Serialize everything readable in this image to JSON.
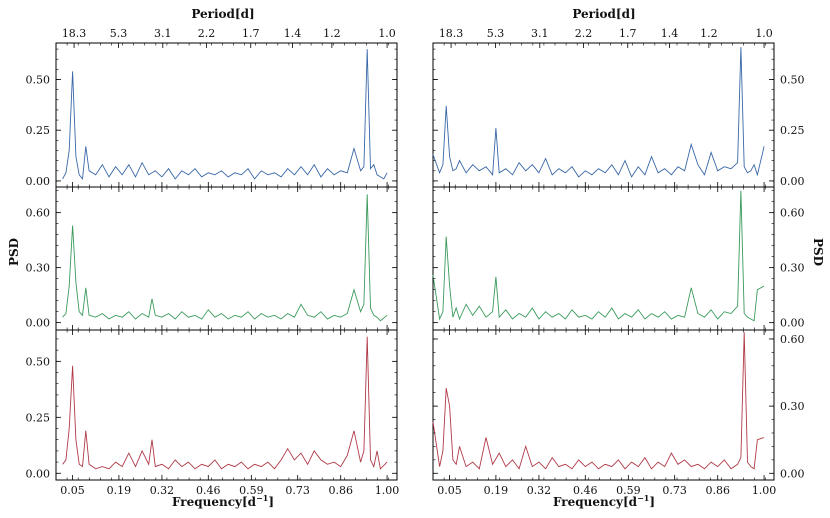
{
  "chart_data": {
    "type": "line",
    "layout": "3 rows x 2 columns",
    "shared_axes": {
      "xlabel_bottom": "Frequency[d",
      "xlabel_bottom_sup": "−1",
      "xlabel_bottom_close": "]",
      "xlabel_top": "Period[d]",
      "ylabel": "PSD",
      "xlim": [
        0.0,
        1.03
      ],
      "x_ticks": [
        0.05,
        0.19,
        0.32,
        0.46,
        0.59,
        0.73,
        0.86,
        1.0
      ],
      "x_tick_labels": [
        "0.05",
        "0.19",
        "0.32",
        "0.46",
        "0.59",
        "0.73",
        "0.86",
        "1.00"
      ],
      "top_ticks_freq": [
        0.0546,
        0.1887,
        0.3226,
        0.4545,
        0.5882,
        0.7143,
        0.8333,
        1.0
      ],
      "top_tick_labels": [
        "18.3",
        "5.3",
        "3.1",
        "2.2",
        "1.7",
        "1.4",
        "1.2",
        "1.0"
      ],
      "y_ticks_left": [
        {
          "values": [
            0.0,
            0.25,
            0.5
          ],
          "labels": [
            "0.00",
            "0.25",
            "0.50"
          ]
        },
        {
          "values": [
            0.0,
            0.3,
            0.6
          ],
          "labels": [
            "0.00",
            "0.30",
            "0.60"
          ]
        },
        {
          "values": [
            0.0,
            0.25,
            0.5
          ],
          "labels": [
            "0.00",
            "0.25",
            "0.50"
          ]
        }
      ],
      "y_ticks_right": [
        {
          "values": [
            0.0,
            0.25,
            0.5
          ],
          "labels": [
            "0.00",
            "0.25",
            "0.50"
          ]
        },
        {
          "values": [
            0.0,
            0.3,
            0.6
          ],
          "labels": [
            "0.00",
            "0.30",
            "0.60"
          ]
        },
        {
          "values": [
            0.0,
            0.3,
            0.6
          ],
          "labels": [
            "0.00",
            "0.30",
            "0.60"
          ]
        }
      ],
      "ylim_rows": [
        [
          -0.03,
          0.68
        ],
        [
          -0.04,
          0.74
        ],
        [
          -0.03,
          0.64
        ]
      ],
      "grid": false
    },
    "colors": {
      "row1": "#3a68a8",
      "row2": "#3a9a5c",
      "row3": "#b03a48"
    },
    "panels": [
      {
        "row": 0,
        "col": 0,
        "color_key": "row1",
        "x": [
          0.02,
          0.03,
          0.04,
          0.05,
          0.06,
          0.07,
          0.08,
          0.09,
          0.1,
          0.12,
          0.14,
          0.16,
          0.18,
          0.2,
          0.22,
          0.24,
          0.26,
          0.28,
          0.3,
          0.32,
          0.34,
          0.36,
          0.38,
          0.4,
          0.42,
          0.44,
          0.46,
          0.48,
          0.5,
          0.52,
          0.54,
          0.56,
          0.58,
          0.6,
          0.62,
          0.64,
          0.66,
          0.68,
          0.7,
          0.72,
          0.74,
          0.76,
          0.78,
          0.8,
          0.82,
          0.84,
          0.86,
          0.88,
          0.9,
          0.92,
          0.93,
          0.94,
          0.95,
          0.96,
          0.97,
          0.98,
          0.99,
          1.0
        ],
        "y": [
          0.01,
          0.04,
          0.15,
          0.54,
          0.12,
          0.03,
          0.01,
          0.17,
          0.05,
          0.03,
          0.08,
          0.02,
          0.07,
          0.03,
          0.08,
          0.02,
          0.09,
          0.03,
          0.05,
          0.02,
          0.06,
          0.01,
          0.05,
          0.03,
          0.06,
          0.02,
          0.04,
          0.03,
          0.05,
          0.02,
          0.04,
          0.03,
          0.06,
          0.01,
          0.05,
          0.03,
          0.04,
          0.02,
          0.06,
          0.03,
          0.07,
          0.03,
          0.08,
          0.02,
          0.06,
          0.03,
          0.05,
          0.04,
          0.16,
          0.05,
          0.07,
          0.65,
          0.06,
          0.08,
          0.03,
          0.02,
          0.01,
          0.04
        ]
      },
      {
        "row": 0,
        "col": 1,
        "color_key": "row1",
        "x": [
          0.0,
          0.02,
          0.03,
          0.04,
          0.05,
          0.06,
          0.07,
          0.08,
          0.1,
          0.12,
          0.14,
          0.16,
          0.18,
          0.19,
          0.2,
          0.22,
          0.24,
          0.26,
          0.28,
          0.3,
          0.32,
          0.34,
          0.36,
          0.38,
          0.4,
          0.42,
          0.44,
          0.46,
          0.48,
          0.5,
          0.52,
          0.54,
          0.56,
          0.58,
          0.6,
          0.62,
          0.64,
          0.66,
          0.68,
          0.7,
          0.72,
          0.74,
          0.76,
          0.78,
          0.8,
          0.82,
          0.84,
          0.86,
          0.88,
          0.9,
          0.92,
          0.93,
          0.94,
          0.95,
          0.96,
          0.97,
          0.98,
          1.0
        ],
        "y": [
          0.13,
          0.04,
          0.08,
          0.37,
          0.12,
          0.05,
          0.06,
          0.1,
          0.04,
          0.08,
          0.05,
          0.07,
          0.03,
          0.26,
          0.04,
          0.06,
          0.03,
          0.09,
          0.05,
          0.08,
          0.04,
          0.11,
          0.03,
          0.06,
          0.04,
          0.07,
          0.02,
          0.05,
          0.03,
          0.06,
          0.04,
          0.08,
          0.03,
          0.1,
          0.02,
          0.07,
          0.03,
          0.12,
          0.04,
          0.06,
          0.03,
          0.07,
          0.05,
          0.18,
          0.08,
          0.03,
          0.14,
          0.05,
          0.07,
          0.06,
          0.09,
          0.66,
          0.07,
          0.04,
          0.05,
          0.08,
          0.03,
          0.17
        ]
      },
      {
        "row": 1,
        "col": 0,
        "color_key": "row2",
        "x": [
          0.02,
          0.03,
          0.04,
          0.05,
          0.06,
          0.07,
          0.08,
          0.09,
          0.1,
          0.12,
          0.14,
          0.16,
          0.18,
          0.2,
          0.22,
          0.24,
          0.26,
          0.28,
          0.29,
          0.3,
          0.32,
          0.34,
          0.36,
          0.38,
          0.4,
          0.42,
          0.44,
          0.46,
          0.48,
          0.5,
          0.52,
          0.54,
          0.56,
          0.58,
          0.6,
          0.62,
          0.64,
          0.66,
          0.68,
          0.7,
          0.72,
          0.74,
          0.76,
          0.78,
          0.8,
          0.82,
          0.84,
          0.86,
          0.88,
          0.9,
          0.92,
          0.93,
          0.94,
          0.95,
          0.96,
          0.97,
          0.98,
          1.0
        ],
        "y": [
          0.03,
          0.05,
          0.2,
          0.53,
          0.22,
          0.06,
          0.04,
          0.19,
          0.04,
          0.03,
          0.05,
          0.02,
          0.04,
          0.03,
          0.06,
          0.02,
          0.05,
          0.03,
          0.13,
          0.04,
          0.03,
          0.05,
          0.02,
          0.06,
          0.03,
          0.04,
          0.02,
          0.07,
          0.03,
          0.05,
          0.02,
          0.04,
          0.03,
          0.06,
          0.02,
          0.05,
          0.03,
          0.04,
          0.02,
          0.05,
          0.03,
          0.1,
          0.04,
          0.03,
          0.06,
          0.02,
          0.04,
          0.03,
          0.05,
          0.18,
          0.06,
          0.1,
          0.7,
          0.08,
          0.04,
          0.03,
          0.01,
          0.04
        ]
      },
      {
        "row": 1,
        "col": 1,
        "color_key": "row2",
        "x": [
          0.0,
          0.02,
          0.03,
          0.04,
          0.05,
          0.06,
          0.07,
          0.08,
          0.1,
          0.12,
          0.14,
          0.16,
          0.18,
          0.19,
          0.2,
          0.22,
          0.24,
          0.26,
          0.28,
          0.3,
          0.32,
          0.34,
          0.36,
          0.38,
          0.4,
          0.42,
          0.44,
          0.46,
          0.48,
          0.5,
          0.52,
          0.54,
          0.56,
          0.58,
          0.6,
          0.62,
          0.64,
          0.66,
          0.68,
          0.7,
          0.72,
          0.74,
          0.76,
          0.78,
          0.8,
          0.82,
          0.84,
          0.86,
          0.88,
          0.9,
          0.92,
          0.93,
          0.94,
          0.95,
          0.96,
          0.97,
          0.98,
          1.0
        ],
        "y": [
          0.26,
          0.02,
          0.06,
          0.47,
          0.2,
          0.03,
          0.08,
          0.02,
          0.1,
          0.04,
          0.09,
          0.03,
          0.06,
          0.25,
          0.03,
          0.07,
          0.02,
          0.05,
          0.03,
          0.08,
          0.02,
          0.06,
          0.03,
          0.05,
          0.02,
          0.07,
          0.03,
          0.04,
          0.02,
          0.06,
          0.03,
          0.08,
          0.02,
          0.05,
          0.03,
          0.07,
          0.02,
          0.05,
          0.03,
          0.06,
          0.02,
          0.04,
          0.03,
          0.19,
          0.05,
          0.03,
          0.07,
          0.02,
          0.06,
          0.05,
          0.09,
          0.72,
          0.05,
          0.03,
          0.02,
          0.01,
          0.18,
          0.2
        ]
      },
      {
        "row": 2,
        "col": 0,
        "color_key": "row3",
        "x": [
          0.02,
          0.03,
          0.04,
          0.05,
          0.06,
          0.07,
          0.08,
          0.09,
          0.1,
          0.12,
          0.14,
          0.16,
          0.18,
          0.2,
          0.22,
          0.24,
          0.26,
          0.28,
          0.29,
          0.3,
          0.32,
          0.34,
          0.36,
          0.38,
          0.4,
          0.42,
          0.44,
          0.46,
          0.48,
          0.5,
          0.52,
          0.54,
          0.56,
          0.58,
          0.6,
          0.62,
          0.64,
          0.66,
          0.68,
          0.7,
          0.72,
          0.74,
          0.76,
          0.78,
          0.8,
          0.82,
          0.84,
          0.86,
          0.88,
          0.9,
          0.92,
          0.93,
          0.94,
          0.95,
          0.96,
          0.97,
          0.98,
          1.0
        ],
        "y": [
          0.04,
          0.06,
          0.2,
          0.48,
          0.15,
          0.04,
          0.03,
          0.19,
          0.04,
          0.02,
          0.03,
          0.02,
          0.05,
          0.03,
          0.09,
          0.03,
          0.1,
          0.04,
          0.15,
          0.03,
          0.04,
          0.02,
          0.06,
          0.03,
          0.05,
          0.02,
          0.04,
          0.03,
          0.06,
          0.02,
          0.04,
          0.03,
          0.05,
          0.02,
          0.04,
          0.03,
          0.05,
          0.02,
          0.06,
          0.11,
          0.06,
          0.09,
          0.04,
          0.1,
          0.06,
          0.04,
          0.05,
          0.03,
          0.08,
          0.19,
          0.05,
          0.1,
          0.61,
          0.06,
          0.03,
          0.1,
          0.02,
          0.05
        ]
      },
      {
        "row": 2,
        "col": 1,
        "color_key": "row3",
        "x": [
          0.0,
          0.02,
          0.03,
          0.04,
          0.05,
          0.06,
          0.07,
          0.08,
          0.1,
          0.12,
          0.14,
          0.16,
          0.18,
          0.2,
          0.22,
          0.24,
          0.26,
          0.28,
          0.3,
          0.32,
          0.34,
          0.36,
          0.38,
          0.4,
          0.42,
          0.44,
          0.46,
          0.48,
          0.5,
          0.52,
          0.54,
          0.56,
          0.58,
          0.6,
          0.62,
          0.64,
          0.66,
          0.68,
          0.7,
          0.72,
          0.74,
          0.76,
          0.78,
          0.8,
          0.82,
          0.84,
          0.86,
          0.88,
          0.9,
          0.92,
          0.93,
          0.94,
          0.95,
          0.96,
          0.97,
          0.98,
          1.0
        ],
        "y": [
          0.23,
          0.03,
          0.1,
          0.38,
          0.3,
          0.06,
          0.04,
          0.12,
          0.03,
          0.05,
          0.02,
          0.16,
          0.04,
          0.09,
          0.03,
          0.06,
          0.02,
          0.12,
          0.03,
          0.05,
          0.02,
          0.07,
          0.03,
          0.04,
          0.02,
          0.06,
          0.03,
          0.05,
          0.02,
          0.04,
          0.03,
          0.06,
          0.02,
          0.05,
          0.03,
          0.07,
          0.02,
          0.05,
          0.03,
          0.09,
          0.04,
          0.06,
          0.03,
          0.04,
          0.02,
          0.05,
          0.03,
          0.06,
          0.02,
          0.04,
          0.07,
          0.63,
          0.05,
          0.03,
          0.02,
          0.15,
          0.16
        ]
      }
    ]
  }
}
